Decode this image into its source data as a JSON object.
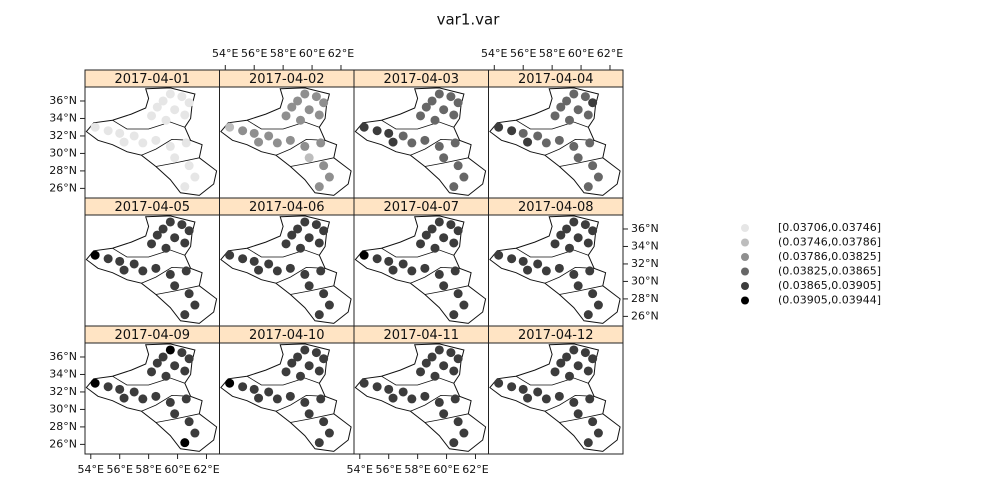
{
  "chart_data": {
    "type": "map",
    "title": "var1.var",
    "xlim": [
      53.6,
      62.9
    ],
    "ylim": [
      24.9,
      37.6
    ],
    "xticks": [
      {
        "value": 54,
        "label": "54°E"
      },
      {
        "value": 56,
        "label": "56°E"
      },
      {
        "value": 58,
        "label": "58°E"
      },
      {
        "value": 60,
        "label": "60°E"
      },
      {
        "value": 62,
        "label": "62°E"
      }
    ],
    "yticks": [
      {
        "value": 36,
        "label": "36°N"
      },
      {
        "value": 34,
        "label": "34°N"
      },
      {
        "value": 32,
        "label": "32°N"
      },
      {
        "value": 30,
        "label": "30°N"
      },
      {
        "value": 28,
        "label": "28°N"
      },
      {
        "value": 26,
        "label": "26°N"
      }
    ],
    "stations": {
      "lon": [
        59.5,
        60.3,
        59.0,
        60.8,
        58.6,
        59.8,
        60.5,
        58.2,
        59.2,
        54.3,
        55.2,
        56.0,
        57.0,
        56.3,
        57.6,
        58.5,
        59.5,
        60.6,
        59.8,
        60.8,
        61.2,
        60.5
      ],
      "lat": [
        36.8,
        36.5,
        36.0,
        35.8,
        35.3,
        35.0,
        34.4,
        34.3,
        33.8,
        33.0,
        32.6,
        32.3,
        32.0,
        31.3,
        31.2,
        31.5,
        30.8,
        31.2,
        29.5,
        28.6,
        27.3,
        26.2
      ]
    },
    "legend": {
      "labels": [
        "[0.03706,0.03746]",
        "(0.03746,0.03786]",
        "(0.03786,0.03825]",
        "(0.03825,0.03865]",
        "(0.03865,0.03905]",
        "(0.03905,0.03944]"
      ],
      "colors": [
        "#e6e6e6",
        "#bdbdbd",
        "#8f8f8f",
        "#676767",
        "#3c3c3c",
        "#000000"
      ]
    },
    "panels": [
      {
        "label": "2017-04-01",
        "classes": [
          0,
          0,
          0,
          0,
          0,
          0,
          0,
          0,
          0,
          0,
          0,
          0,
          0,
          0,
          0,
          0,
          0,
          0,
          0,
          0,
          0,
          0
        ]
      },
      {
        "label": "2017-04-02",
        "classes": [
          2,
          2,
          2,
          2,
          2,
          2,
          2,
          2,
          2,
          1,
          2,
          2,
          2,
          2,
          2,
          2,
          2,
          2,
          1,
          2,
          2,
          2
        ]
      },
      {
        "label": "2017-04-03",
        "classes": [
          3,
          3,
          3,
          3,
          3,
          3,
          3,
          3,
          3,
          4,
          4,
          4,
          3,
          4,
          3,
          3,
          3,
          3,
          3,
          3,
          3,
          3
        ]
      },
      {
        "label": "2017-04-04",
        "classes": [
          3,
          3,
          3,
          4,
          3,
          3,
          3,
          3,
          3,
          4,
          4,
          3,
          3,
          4,
          3,
          3,
          3,
          3,
          3,
          3,
          3,
          3
        ]
      },
      {
        "label": "2017-04-05",
        "classes": [
          4,
          4,
          4,
          4,
          4,
          4,
          4,
          4,
          4,
          5,
          4,
          4,
          4,
          4,
          4,
          4,
          4,
          4,
          4,
          4,
          4,
          4
        ]
      },
      {
        "label": "2017-04-06",
        "classes": [
          4,
          4,
          4,
          4,
          4,
          4,
          4,
          4,
          4,
          4,
          4,
          4,
          4,
          4,
          4,
          4,
          4,
          4,
          4,
          4,
          4,
          4
        ]
      },
      {
        "label": "2017-04-07",
        "classes": [
          4,
          4,
          4,
          4,
          4,
          4,
          4,
          4,
          4,
          5,
          4,
          4,
          4,
          4,
          4,
          4,
          4,
          4,
          4,
          4,
          4,
          4
        ]
      },
      {
        "label": "2017-04-08",
        "classes": [
          4,
          4,
          4,
          4,
          4,
          4,
          4,
          4,
          4,
          4,
          4,
          4,
          4,
          4,
          4,
          4,
          4,
          4,
          4,
          4,
          4,
          4
        ]
      },
      {
        "label": "2017-04-09",
        "classes": [
          5,
          4,
          4,
          4,
          4,
          4,
          4,
          4,
          4,
          5,
          4,
          4,
          4,
          4,
          4,
          4,
          4,
          4,
          4,
          4,
          4,
          5
        ]
      },
      {
        "label": "2017-04-10",
        "classes": [
          4,
          4,
          4,
          4,
          4,
          4,
          4,
          4,
          4,
          5,
          4,
          4,
          4,
          4,
          4,
          4,
          4,
          4,
          4,
          4,
          4,
          4
        ]
      },
      {
        "label": "2017-04-11",
        "classes": [
          4,
          4,
          4,
          4,
          4,
          4,
          4,
          4,
          4,
          4,
          4,
          4,
          4,
          4,
          4,
          4,
          4,
          4,
          4,
          4,
          4,
          4
        ]
      },
      {
        "label": "2017-04-12",
        "classes": [
          4,
          4,
          4,
          4,
          4,
          4,
          4,
          4,
          4,
          4,
          4,
          4,
          4,
          4,
          4,
          4,
          4,
          4,
          4,
          4,
          4,
          4
        ]
      }
    ]
  }
}
